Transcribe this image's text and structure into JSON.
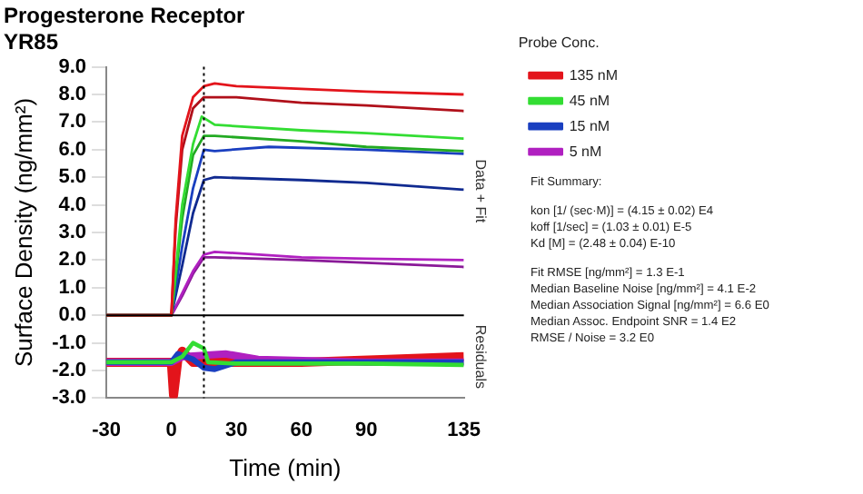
{
  "chart_data": {
    "type": "line",
    "title": "Progesterone Receptor",
    "subtitle": "YR85",
    "xlabel": "Time (min)",
    "ylabel": "Surface Density (ng/mm²)",
    "legend_title": "Probe Conc.",
    "xlim": [
      -30,
      135
    ],
    "xticks": [
      -30,
      0,
      30,
      60,
      90,
      135
    ],
    "ylim": [
      -3,
      9
    ],
    "yticks": [
      {
        "value": -3,
        "label": "-3.0"
      },
      {
        "value": -2,
        "label": "-2.0"
      },
      {
        "value": -1,
        "label": "-1.0"
      },
      {
        "value": 0,
        "label": "0.0"
      },
      {
        "value": 1,
        "label": "1.0"
      },
      {
        "value": 2,
        "label": "2.0"
      },
      {
        "value": 3,
        "label": "3.0"
      },
      {
        "value": 4,
        "label": "4.0"
      },
      {
        "value": 5,
        "label": "5.0"
      },
      {
        "value": 6,
        "label": "6.0"
      },
      {
        "value": 7,
        "label": "7.0"
      },
      {
        "value": 8,
        "label": "8.0"
      },
      {
        "value": 9,
        "label": "9.0"
      }
    ],
    "grid": false,
    "legend": "right",
    "marker": "none",
    "line_style": "solid",
    "ref_lines": [
      {
        "axis": "x",
        "value": 15,
        "line_style": "dotted",
        "color": "#000000"
      },
      {
        "axis": "y",
        "value": 0,
        "line_style": "solid",
        "color": "#000000"
      }
    ],
    "annotations": [
      "Data + Fit",
      "Residuals",
      "Fit Summary:",
      "kon  [1/ (sec·M)]  =  (4.15 ± 0.02) E4",
      "koff  [1/sec]  =  (1.03 ± 0.01) E-5",
      "Kd  [M]  =  (2.48 ± 0.04) E-10",
      "Fit RMSE [ng/mm²]  =  1.3 E-1",
      "Median Baseline Noise [ng/mm²]  =  4.1 E-2",
      "Median Association Signal [ng/mm²]  =  6.6 E0",
      "Median Assoc. Endpoint SNR  =  1.4 E2",
      "RMSE / Noise  =  3.2 E0"
    ],
    "series": [
      {
        "name": "135 nM",
        "color": "#e3141b",
        "x": [
          -30,
          0,
          2,
          5,
          10,
          15,
          20,
          30,
          60,
          90,
          135
        ],
        "values": [
          0,
          0,
          3.5,
          6.5,
          7.9,
          8.3,
          8.4,
          8.3,
          8.2,
          8.1,
          8.0
        ]
      },
      {
        "color": "#b0101a",
        "x": [
          -30,
          0,
          2,
          5,
          10,
          15,
          20,
          30,
          60,
          90,
          135
        ],
        "values": [
          0,
          0,
          3.2,
          6.0,
          7.5,
          7.9,
          7.9,
          7.9,
          7.7,
          7.6,
          7.4
        ]
      },
      {
        "name": "45 nM",
        "color": "#33dd33",
        "x": [
          -30,
          0,
          5,
          10,
          14,
          20,
          60,
          90,
          135
        ],
        "values": [
          0,
          0,
          4.0,
          6.2,
          7.2,
          6.9,
          6.7,
          6.6,
          6.4
        ]
      },
      {
        "color": "#22aa22",
        "x": [
          -30,
          0,
          5,
          10,
          15,
          20,
          60,
          90,
          135
        ],
        "values": [
          0,
          0,
          3.5,
          5.8,
          6.5,
          6.5,
          6.3,
          6.1,
          5.95
        ]
      },
      {
        "name": "15 nM",
        "color": "#1a3fc0",
        "x": [
          -30,
          0,
          5,
          10,
          15,
          20,
          45,
          90,
          135
        ],
        "values": [
          0,
          0,
          2.5,
          4.6,
          6.0,
          5.95,
          6.1,
          6.0,
          5.85
        ]
      },
      {
        "color": "#102a90",
        "x": [
          -30,
          0,
          5,
          10,
          15,
          20,
          60,
          90,
          135
        ],
        "values": [
          0,
          0,
          1.8,
          3.7,
          4.9,
          5.0,
          4.9,
          4.8,
          4.55
        ]
      },
      {
        "name": "5 nM",
        "color": "#b020c0",
        "x": [
          -30,
          0,
          5,
          10,
          15,
          20,
          60,
          90,
          135
        ],
        "values": [
          0,
          0,
          0.8,
          1.6,
          2.2,
          2.3,
          2.1,
          2.05,
          2.0
        ]
      },
      {
        "color": "#8a1a98",
        "x": [
          -30,
          0,
          5,
          10,
          15,
          20,
          60,
          90,
          135
        ],
        "values": [
          0,
          0,
          0.7,
          1.5,
          2.1,
          2.1,
          2.0,
          1.9,
          1.75
        ]
      },
      {
        "color": "#33dd33",
        "x": [
          -30,
          0,
          5,
          10,
          15,
          17,
          30,
          90,
          135
        ],
        "values": [
          -1.7,
          -1.7,
          -1.5,
          -1.0,
          -1.2,
          -1.7,
          -1.75,
          -1.75,
          -1.8
        ]
      },
      {
        "color": "#1a3fc0",
        "x": [
          -30,
          0,
          3,
          10,
          15,
          20,
          30,
          90,
          135
        ],
        "values": [
          -1.7,
          -1.7,
          -1.4,
          -1.6,
          -1.9,
          -1.95,
          -1.7,
          -1.7,
          -1.7
        ]
      },
      {
        "color": "#b020c0",
        "x": [
          -30,
          0,
          5,
          15,
          25,
          40,
          90,
          135
        ],
        "values": [
          -1.7,
          -1.7,
          -1.5,
          -1.45,
          -1.4,
          -1.6,
          -1.7,
          -1.7
        ]
      },
      {
        "color": "#e3141b",
        "x": [
          -30,
          0,
          1,
          3,
          5,
          10,
          20,
          60,
          100,
          135
        ],
        "values": [
          -1.7,
          -1.7,
          -2.9,
          -1.6,
          -1.3,
          -1.7,
          -1.7,
          -1.7,
          -1.6,
          -1.5
        ]
      }
    ]
  }
}
